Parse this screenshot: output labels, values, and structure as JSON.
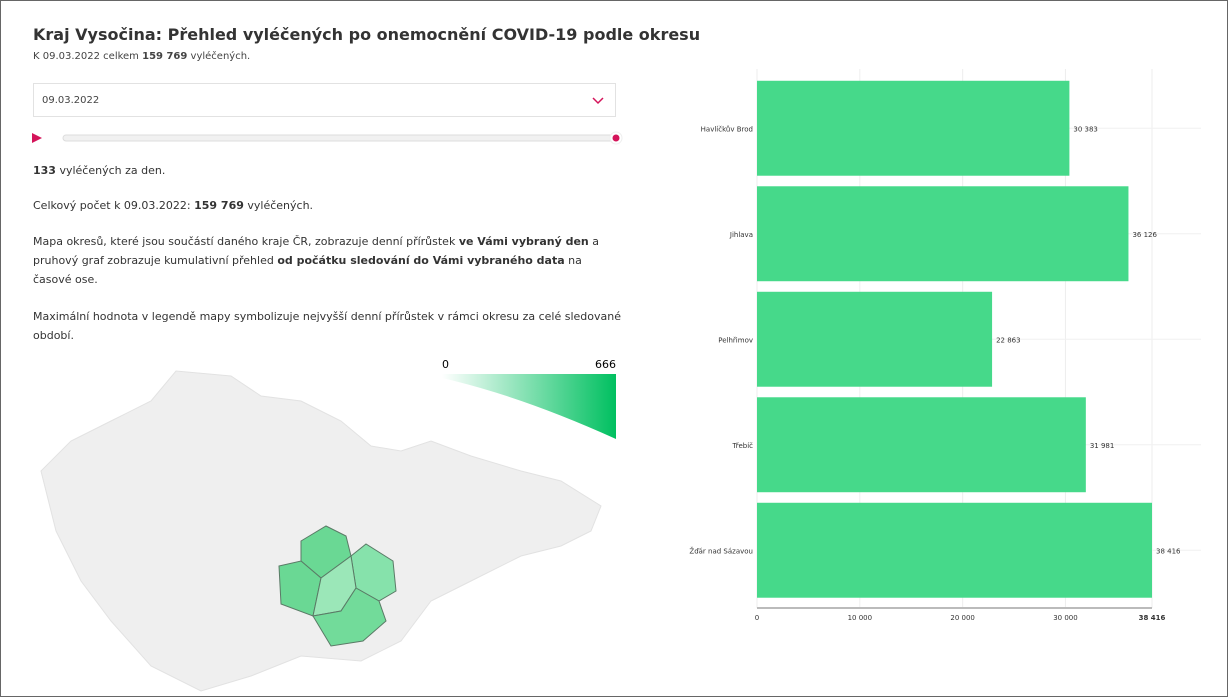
{
  "header": {
    "title": "Kraj Vysočina: Přehled vyléčených po onemocnění COVID-19 podle okresu",
    "subtitle": [
      "K 09.03.2022 celkem ",
      "159 769",
      " vyléčených."
    ]
  },
  "controls": {
    "date_select": "09.03.2022"
  },
  "text": {
    "daily": [
      "133",
      " vyléčených za den."
    ],
    "total": [
      "Celkový počet k 09.03.2022: ",
      "159 769",
      " vyléčených."
    ],
    "description": [
      "Mapa okresů, které jsou součástí daného kraje ČR, zobrazuje denní přírůstek ",
      "ve Vámi vybraný den",
      " a pruhový graf zobrazuje kumulativní přehled ",
      "od počátku sledování do Vámi vybraného data",
      " na časové ose."
    ],
    "note": "Maximální hodnota v legendě mapy symbolizuje nejvyšší denní přírůstek v rámci okresu za celé sledované období."
  },
  "map_legend": {
    "min": 0,
    "max": 666
  },
  "chart_data": {
    "type": "bar",
    "orientation": "horizontal",
    "categories": [
      "Havlíčkův Brod",
      "Jihlava",
      "Pelhřimov",
      "Třebíč",
      "Žďár nad Sázavou"
    ],
    "values": [
      30383,
      36126,
      22863,
      31981,
      38416
    ],
    "value_labels": [
      "30 383",
      "36 126",
      "22 863",
      "31 981",
      "38 416"
    ],
    "color": "#46d98a",
    "xlim": [
      0,
      38416
    ],
    "xticks": [
      0,
      {
        "value": 10000,
        "label": "10 000"
      },
      {
        "value": 20000,
        "label": "20 000"
      },
      {
        "value": 30000,
        "label": "30 000"
      },
      {
        "value": 38416,
        "label": "38 416"
      }
    ],
    "grid": true
  }
}
